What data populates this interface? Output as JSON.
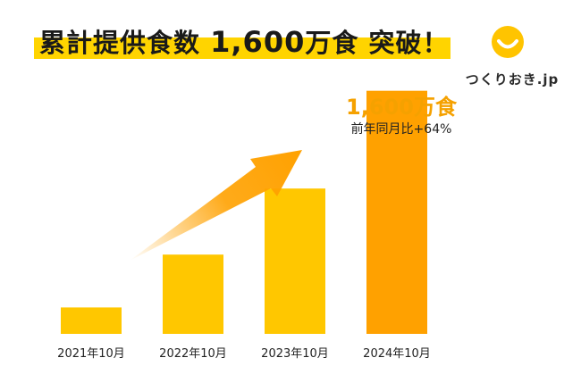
{
  "header": {
    "title_prefix": "累計提供食数",
    "title_number": "1,600",
    "title_suffix": "万食 突破！"
  },
  "logo": {
    "text": "つくりおき.jp",
    "color": "#ffc400"
  },
  "chart_data": {
    "type": "bar",
    "categories": [
      "2021年10月",
      "2022年10月",
      "2023年10月",
      "2024年10月"
    ],
    "values": [
      100,
      300,
      550,
      920
    ],
    "highlight_label": "1,600万食",
    "highlight_sub": "前年同月比+64%",
    "colors": {
      "bar": "#ffc700",
      "bar_highlight": "#ffa100",
      "arrow": "#ffa100",
      "highlight_text": "#f5a100"
    },
    "ylim": [
      0,
      1000
    ],
    "grid": false,
    "annotation": "growth-arrow"
  }
}
